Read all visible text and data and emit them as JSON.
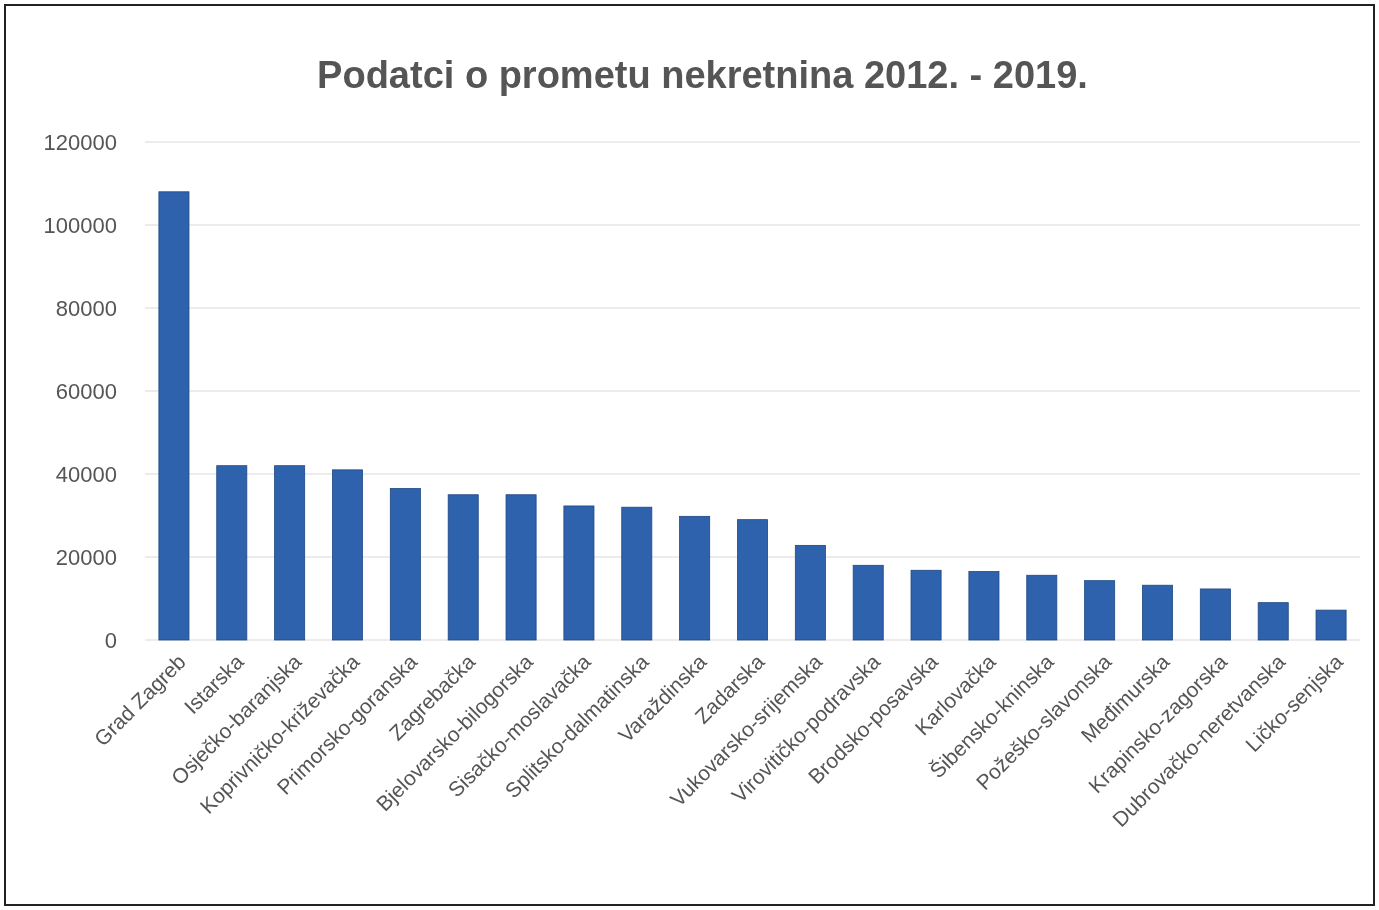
{
  "chart_data": {
    "type": "bar",
    "title": "Podatci o prometu nekretnina 2012. - 2019.",
    "categories": [
      "Grad Zagreb",
      "Istarska",
      "Osječko-baranjska",
      "Koprivničko-križevačka",
      "Primorsko-goranska",
      "Zagrebačka",
      "Bjelovarsko-bilogorska",
      "Sisačko-moslavačka",
      "Splitsko-dalmatinska",
      "Varaždinska",
      "Zadarska",
      "Vukovarsko-srijemska",
      "Virovitičko-podravska",
      "Brodsko-posavska",
      "Karlovačka",
      "Šibensko-kninska",
      "Požeško-slavonska",
      "Međimurska",
      "Krapinsko-zagorska",
      "Dubrovačko-neretvanska",
      "Ličko-senjska"
    ],
    "values": [
      108000,
      42000,
      42000,
      41000,
      36500,
      35000,
      35000,
      32300,
      32000,
      29800,
      29000,
      22800,
      18000,
      16800,
      16500,
      15600,
      14300,
      13200,
      12300,
      9000,
      7200
    ],
    "color": "#2f62ad",
    "ylim": [
      0,
      120000
    ],
    "yticks": [
      0,
      20000,
      40000,
      60000,
      80000,
      100000,
      120000
    ],
    "grid": "y"
  }
}
